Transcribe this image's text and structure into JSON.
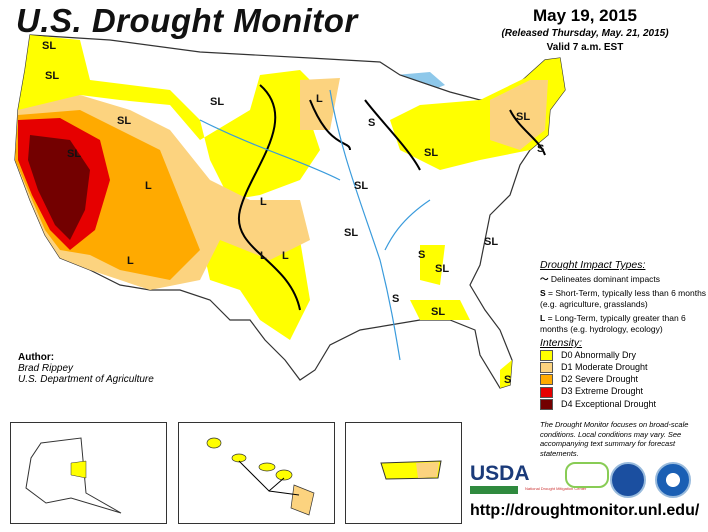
{
  "header": {
    "title": "U.S. Drought Monitor",
    "date": "May 19, 2015",
    "released": "(Released Thursday, May. 21, 2015)",
    "valid": "Valid 7 a.m. EST"
  },
  "author": {
    "label": "Author:",
    "name": "Brad Rippey",
    "org": "U.S. Department of Agriculture"
  },
  "legend": {
    "impact_title": "Drought Impact Types:",
    "delineates": "Delineates dominant impacts",
    "s_key": "S",
    "s_desc": " = Short-Term, typically less than 6 months (e.g. agriculture, grasslands)",
    "l_key": "L",
    "l_desc": " = Long-Term, typically greater than 6 months (e.g. hydrology, ecology)",
    "intensity_title": "Intensity:",
    "items": [
      {
        "label": "D0 Abnormally Dry",
        "color": "#ffff00"
      },
      {
        "label": "D1 Moderate Drought",
        "color": "#fcd37f"
      },
      {
        "label": "D2 Severe Drought",
        "color": "#ffaa00"
      },
      {
        "label": "D3 Extreme Drought",
        "color": "#e60000"
      },
      {
        "label": "D4 Exceptional Drought",
        "color": "#730000"
      }
    ]
  },
  "note": "The Drought Monitor focuses on broad-scale conditions. Local conditions may vary. See accompanying text summary for forecast statements.",
  "logos": {
    "usda": "USDA",
    "ndmc": "National Drought Mitigation Center"
  },
  "url": "http://droughtmonitor.unl.edu/",
  "map_labels": [
    "SL",
    "SL",
    "SL",
    "SL",
    "L",
    "L",
    "L",
    "L",
    "L",
    "SL",
    "L",
    "S",
    "SL",
    "SL",
    "SL",
    "SL",
    "S",
    "SL",
    "SL",
    "S",
    "SL",
    "S",
    "S",
    "SL",
    "S",
    "SL"
  ]
}
